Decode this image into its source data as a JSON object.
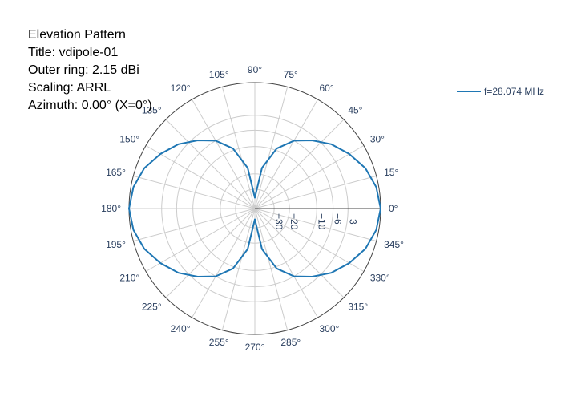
{
  "header": {
    "lines": [
      "Elevation Pattern",
      "Title: vdipole-01",
      "Outer ring: 2.15 dBi",
      "Scaling: ARRL",
      "Azimuth: 0.00° (X=0°)"
    ]
  },
  "colors": {
    "trace": "#1f77b4",
    "grid": "#cccccc",
    "axis": "#444444",
    "tick_text": "#2a3f5f"
  },
  "chart_data": {
    "type": "line",
    "subtype": "polar",
    "radial_axis": {
      "scaling": "ARRL",
      "range": [
        -40,
        2.15
      ],
      "ticks": [
        -30,
        -20,
        -10,
        -6,
        -3
      ],
      "tick_labels": [
        "−30",
        "−20",
        "−10",
        "−6",
        "−3"
      ]
    },
    "angular_axis": {
      "unit": "deg",
      "ticks": [
        0,
        15,
        30,
        45,
        60,
        75,
        90,
        105,
        120,
        135,
        150,
        165,
        180,
        195,
        210,
        225,
        240,
        255,
        270,
        285,
        300,
        315,
        330,
        345
      ],
      "tick_labels": [
        "0°",
        "15°",
        "30°",
        "45°",
        "60°",
        "75°",
        "90°",
        "105°",
        "120°",
        "135°",
        "150°",
        "165°",
        "180°",
        "195°",
        "210°",
        "225°",
        "240°",
        "255°",
        "270°",
        "285°",
        "300°",
        "315°",
        "330°",
        "345°"
      ]
    },
    "legend_position": "top-right",
    "series": [
      {
        "name": "f=28.074 MHz",
        "theta": [
          0,
          10,
          20,
          30,
          40,
          50,
          60,
          70,
          80,
          90,
          100,
          110,
          120,
          130,
          140,
          150,
          160,
          170,
          180,
          190,
          200,
          210,
          220,
          230,
          240,
          250,
          260,
          270,
          280,
          290,
          300,
          310,
          320,
          330,
          340,
          350,
          360
        ],
        "gain_dbi": [
          2.15,
          1.8,
          1.0,
          -0.3,
          -1.8,
          -3.8,
          -6.0,
          -9.5,
          -17.0,
          -40.0,
          -17.0,
          -9.5,
          -6.0,
          -3.8,
          -1.8,
          -0.3,
          1.0,
          1.8,
          2.15,
          1.8,
          1.0,
          -0.3,
          -1.8,
          -3.8,
          -6.0,
          -9.5,
          -17.0,
          -40.0,
          -17.0,
          -9.5,
          -6.0,
          -3.8,
          -1.8,
          -0.3,
          1.0,
          1.8,
          2.15
        ]
      }
    ]
  }
}
